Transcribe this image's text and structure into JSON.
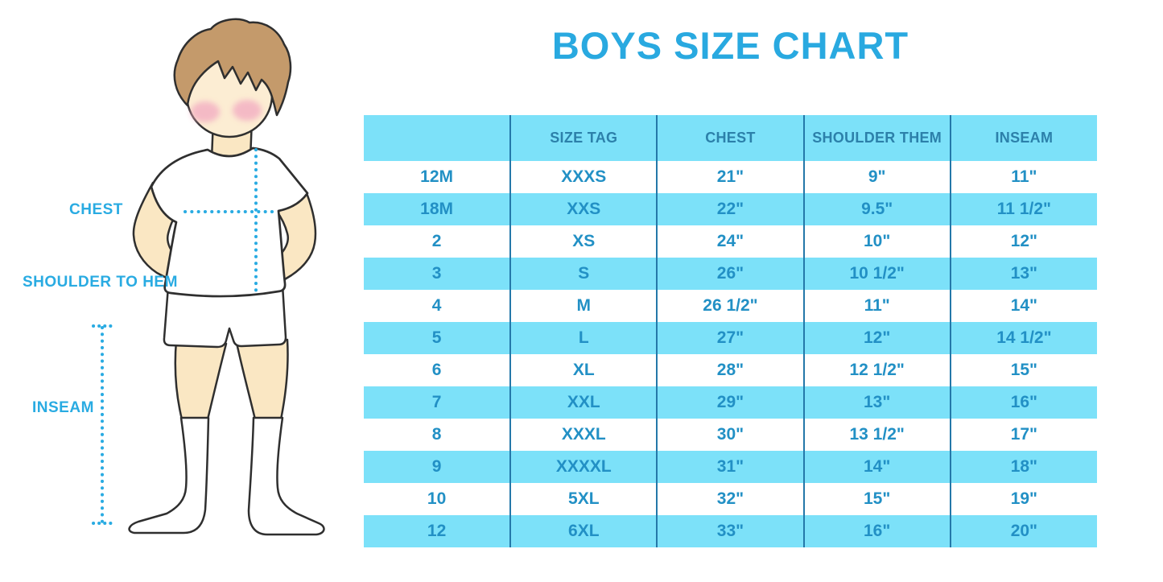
{
  "title": "BOYS SIZE CHART",
  "measurement_labels": {
    "chest": "CHEST",
    "shoulder_to_hem": "SHOULDER TO HEM",
    "inseam": "INSEAM"
  },
  "colors": {
    "title_blue": "#29a9e0",
    "label_blue": "#29abe2",
    "stripe_blue": "#7ce1f9",
    "table_value_blue": "#2290c5",
    "table_header_blue": "#2c80aa",
    "divider_blue": "#2478a9",
    "dotted_line_blue": "#29abe2",
    "skin": "#fae7c3",
    "hair_brown": "#c49a6b",
    "blush_pink": "#f3aec2"
  },
  "chart_data": {
    "type": "table",
    "title": "BOYS SIZE CHART",
    "columns": [
      "",
      "SIZE TAG",
      "CHEST",
      "SHOULDER THEM",
      "INSEAM"
    ],
    "rows": [
      [
        "12M",
        "XXXS",
        "21\"",
        "9\"",
        "11\""
      ],
      [
        "18M",
        "XXS",
        "22\"",
        "9.5\"",
        "11 1/2\""
      ],
      [
        "2",
        "XS",
        "24\"",
        "10\"",
        "12\""
      ],
      [
        "3",
        "S",
        "26\"",
        "10 1/2\"",
        "13\""
      ],
      [
        "4",
        "M",
        "26 1/2\"",
        "11\"",
        "14\""
      ],
      [
        "5",
        "L",
        "27\"",
        "12\"",
        "14 1/2\""
      ],
      [
        "6",
        "XL",
        "28\"",
        "12 1/2\"",
        "15\""
      ],
      [
        "7",
        "XXL",
        "29\"",
        "13\"",
        "16\""
      ],
      [
        "8",
        "XXXL",
        "30\"",
        "13 1/2\"",
        "17\""
      ],
      [
        "9",
        "XXXXL",
        "31\"",
        "14\"",
        "18\""
      ],
      [
        "10",
        "5XL",
        "32\"",
        "15\"",
        "19\""
      ],
      [
        "12",
        "6XL",
        "33\"",
        "16\"",
        "20\""
      ]
    ]
  }
}
